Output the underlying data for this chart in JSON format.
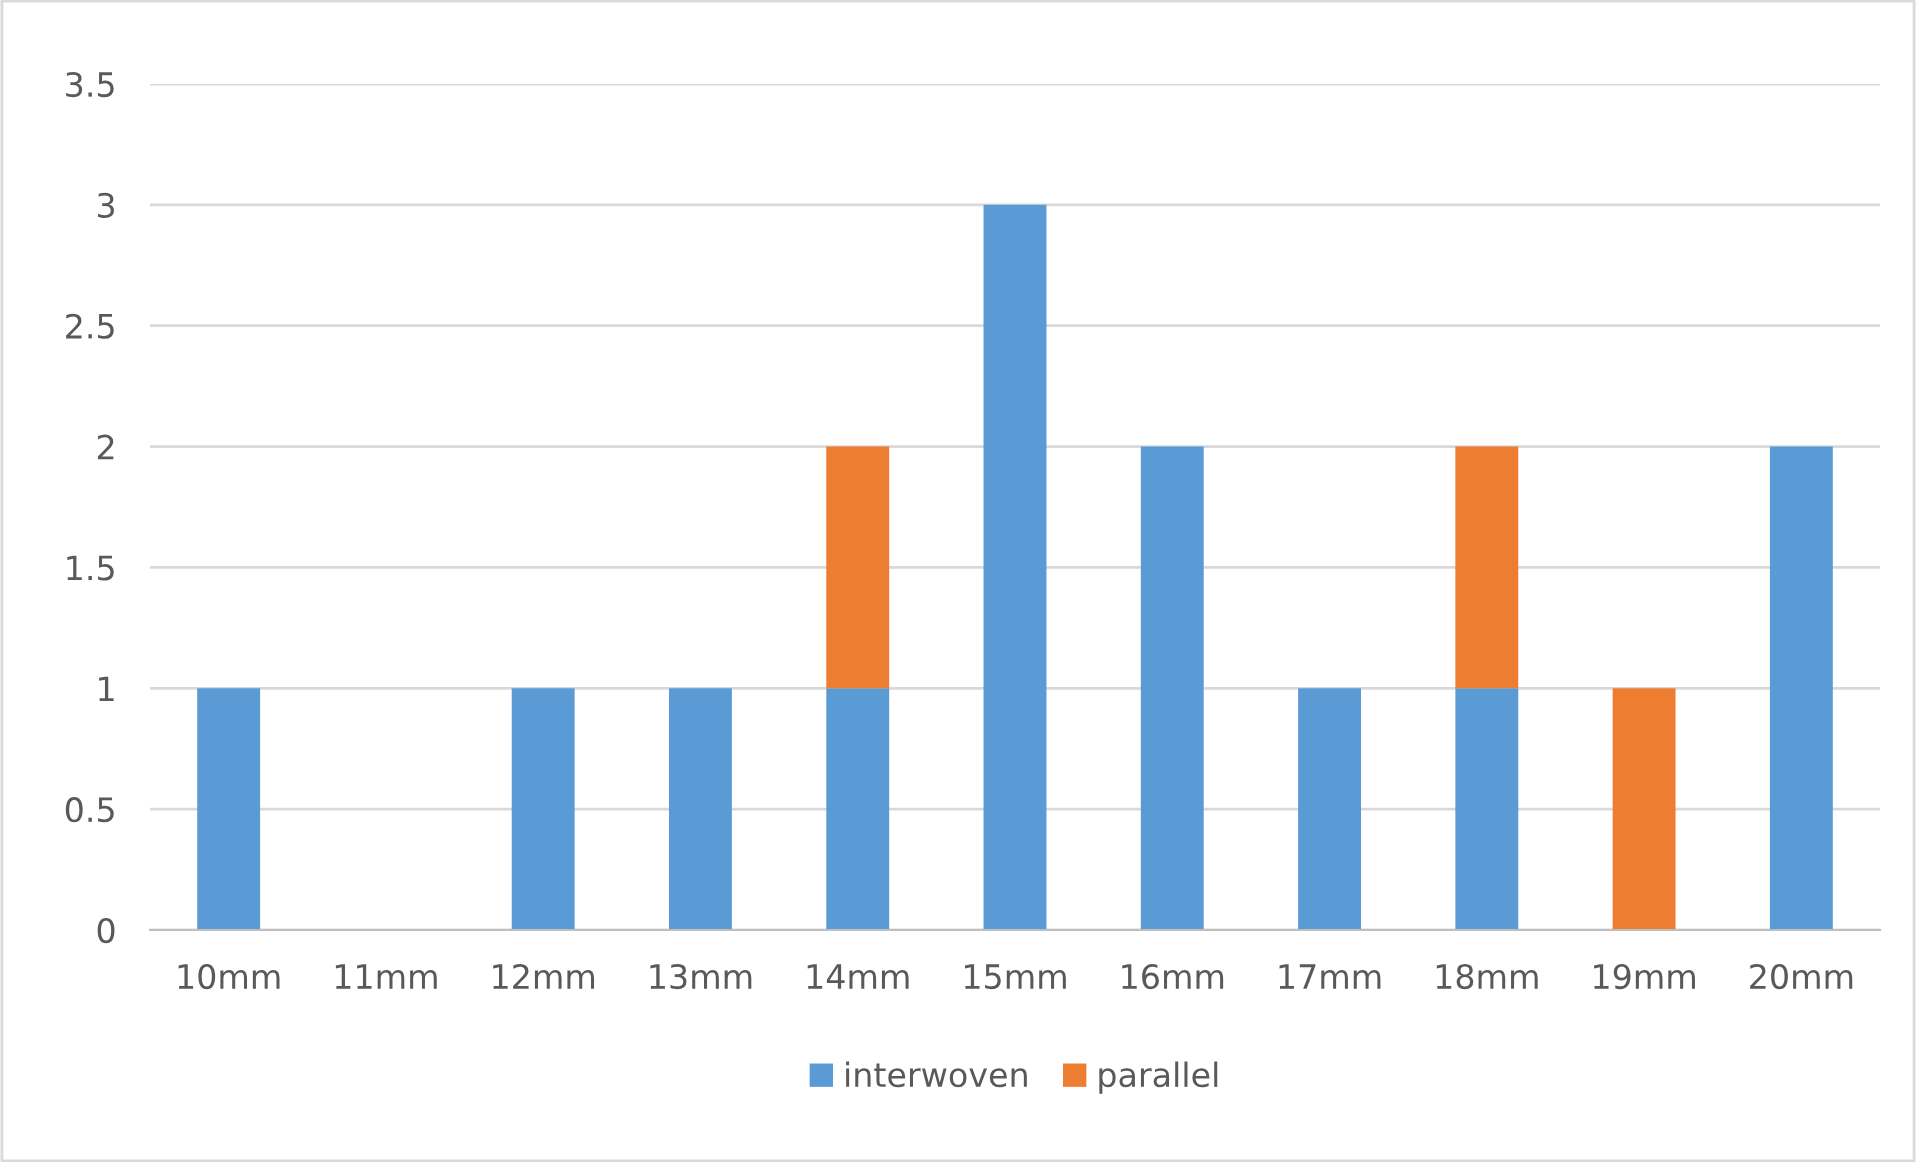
{
  "chart_data": {
    "type": "bar",
    "stacked": true,
    "categories": [
      "10mm",
      "11mm",
      "12mm",
      "13mm",
      "14mm",
      "15mm",
      "16mm",
      "17mm",
      "18mm",
      "19mm",
      "20mm"
    ],
    "series": [
      {
        "name": "interwoven",
        "color": "#5b9bd5",
        "values": [
          1,
          0,
          1,
          1,
          1,
          3,
          2,
          1,
          1,
          0,
          2
        ]
      },
      {
        "name": "parallel",
        "color": "#ed7d31",
        "values": [
          0,
          0,
          0,
          0,
          1,
          0,
          0,
          0,
          1,
          1,
          0
        ]
      }
    ],
    "ylim": [
      0,
      3.5
    ],
    "yticks": [
      0,
      0.5,
      1,
      1.5,
      2,
      2.5,
      3,
      3.5
    ],
    "grid": "y",
    "legend": "bottom"
  }
}
